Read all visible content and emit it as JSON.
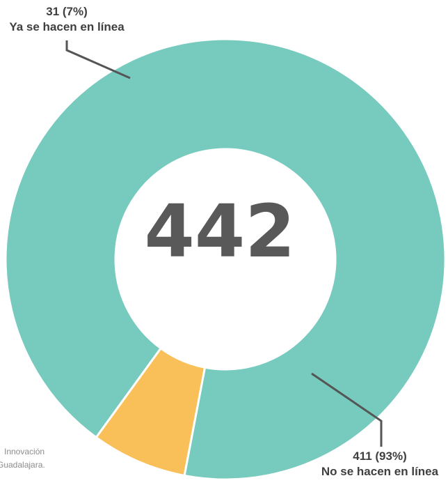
{
  "chart_data": {
    "type": "pie",
    "center_label": "442",
    "slices": [
      {
        "label": "No se hacen en línea",
        "value": 411,
        "value_text": "411 (93%)",
        "color": "#76CBBE"
      },
      {
        "label": "Ya se hacen en línea",
        "value": 31,
        "value_text": "31 (7%)",
        "color": "#F9C05A"
      }
    ]
  },
  "source": {
    "line1": "Innovación",
    "line2": "Guadalajara."
  }
}
